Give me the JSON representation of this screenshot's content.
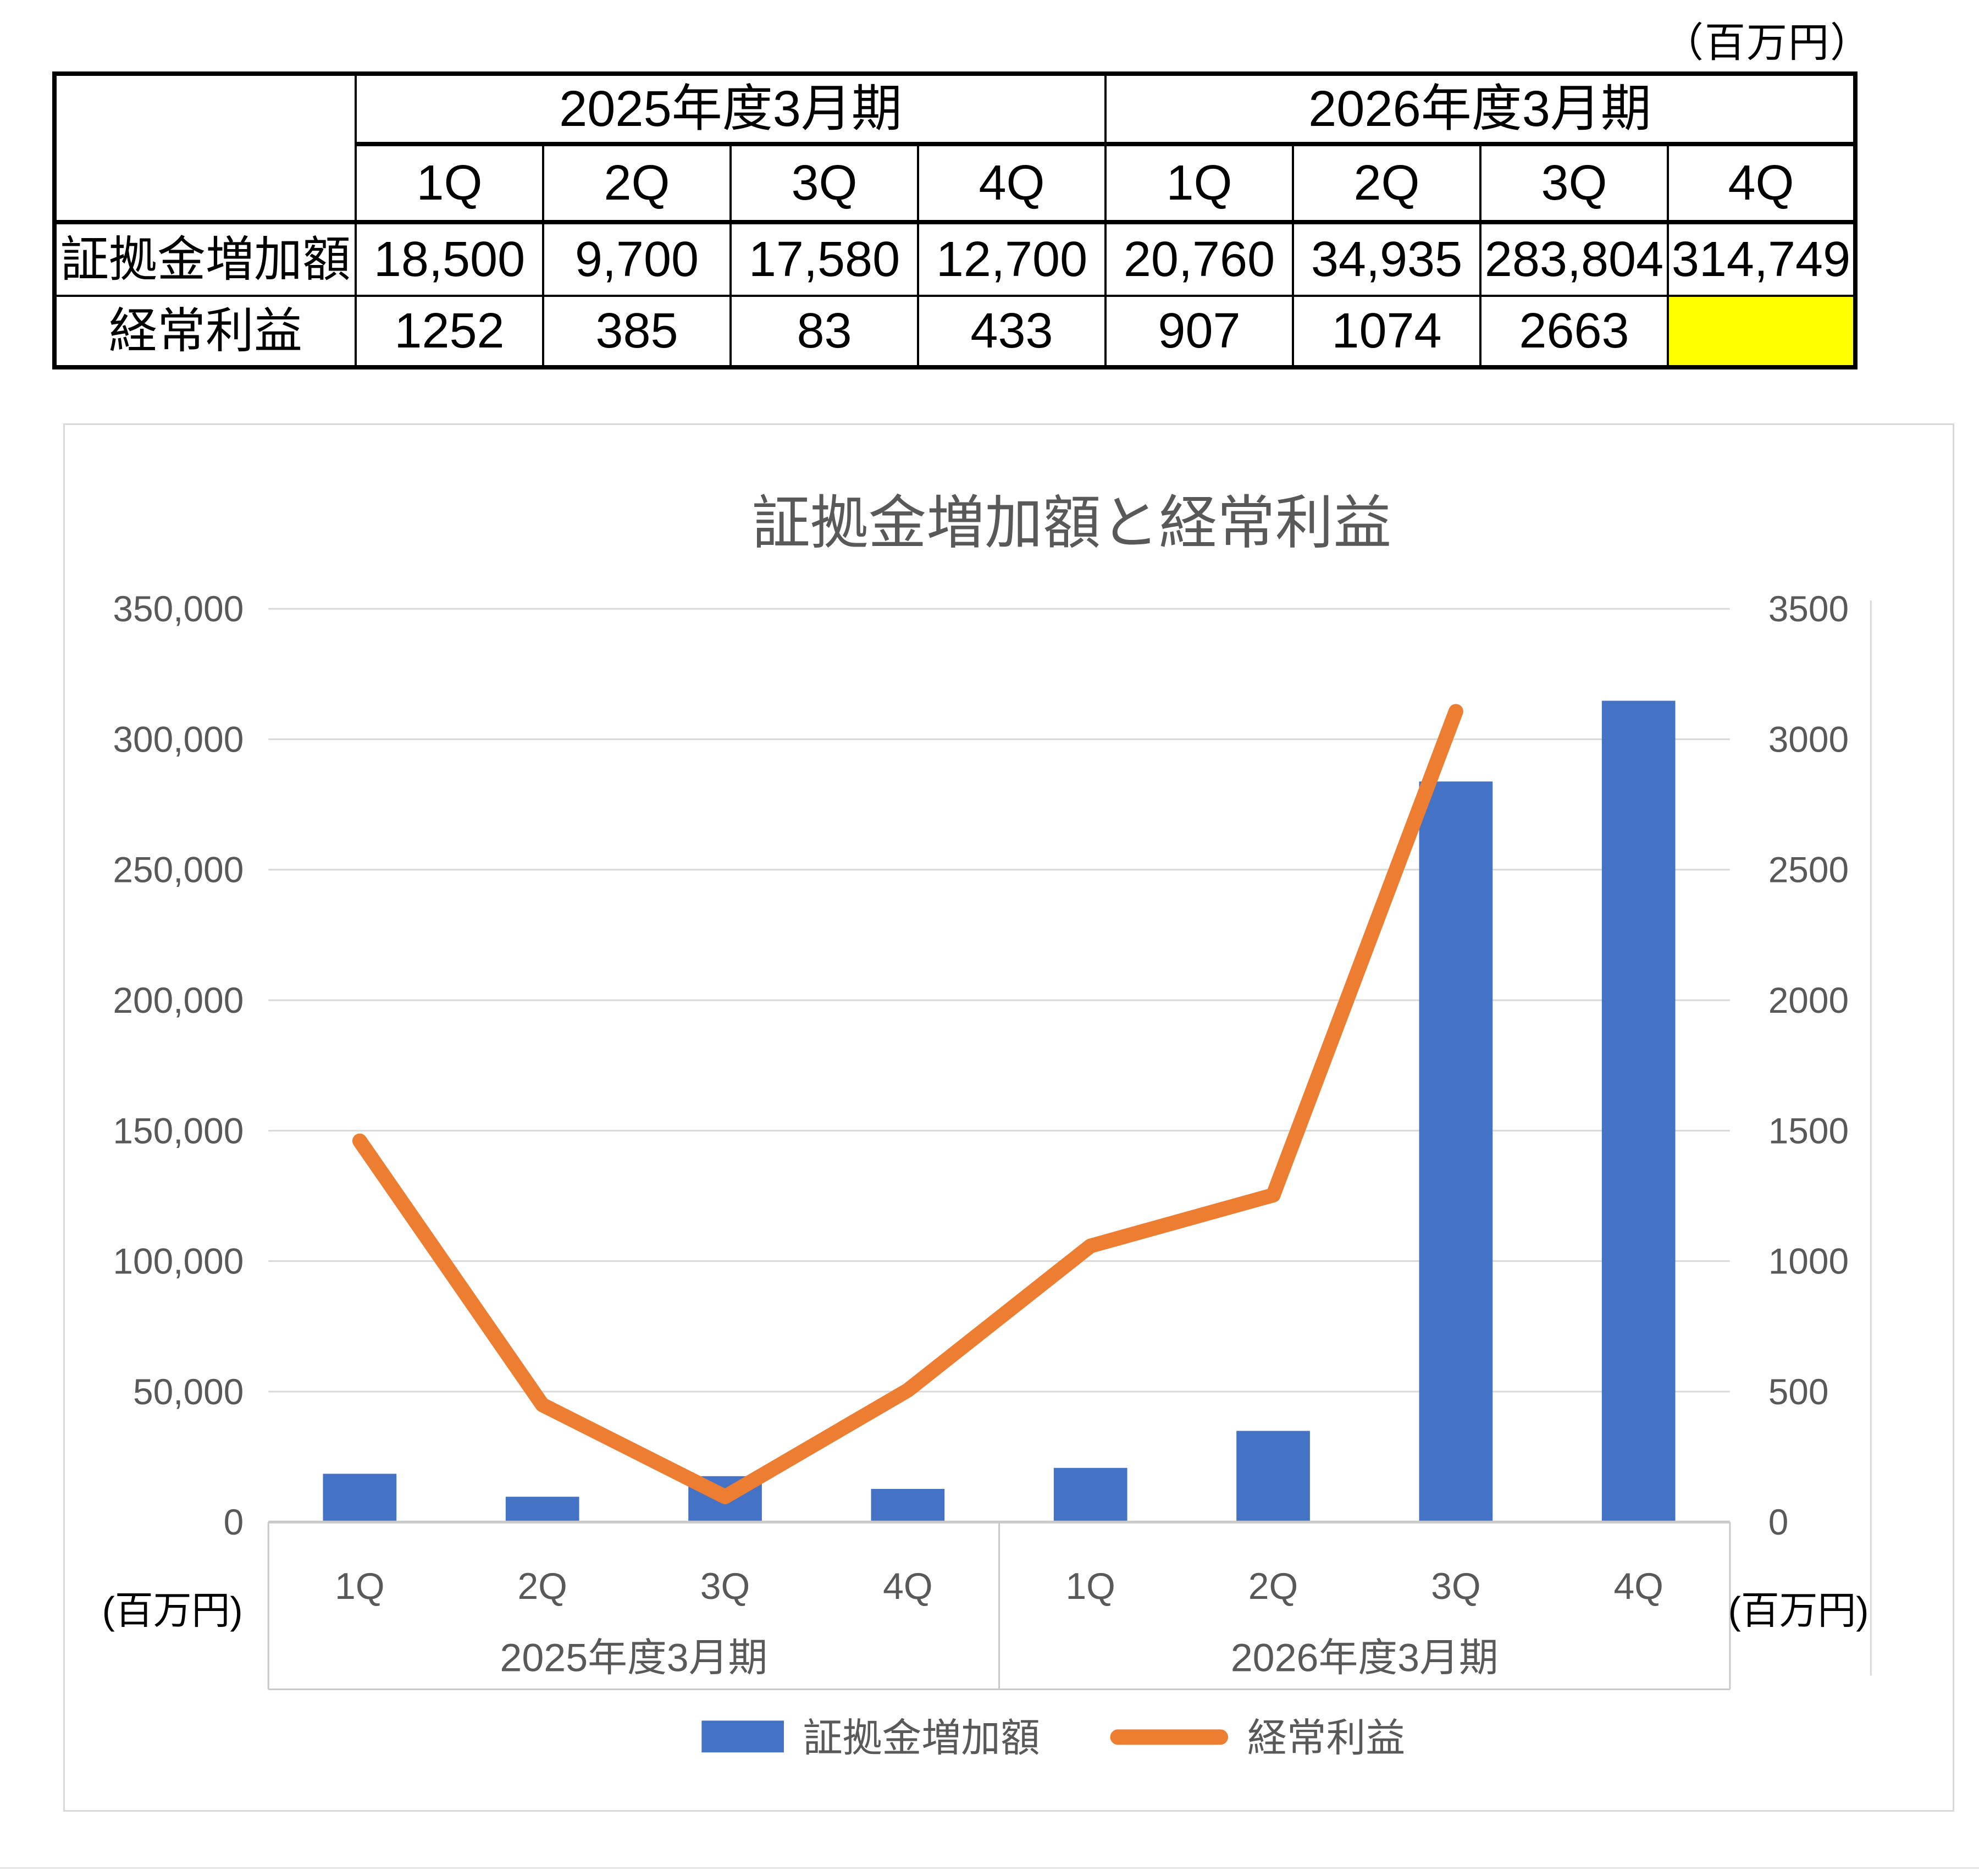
{
  "unit_note_top": "（百万円）",
  "table": {
    "year_headers": [
      "2025年度3月期",
      "2026年度3月期"
    ],
    "quarter_headers": [
      "1Q",
      "2Q",
      "3Q",
      "4Q",
      "1Q",
      "2Q",
      "3Q",
      "4Q"
    ],
    "rows": [
      {
        "label": "証拠金増加額",
        "values": [
          "18,500",
          "9,700",
          "17,580",
          "12,700",
          "20,760",
          "34,935",
          "283,804",
          "314,749"
        ]
      },
      {
        "label": "経常利益",
        "values": [
          "1252",
          "385",
          "83",
          "433",
          "907",
          "1074",
          "2663",
          ""
        ]
      }
    ],
    "highlight_color": "#FFFF00",
    "highlight_cell": {
      "row": 1,
      "col": 7
    }
  },
  "chart_data": {
    "type": "combo",
    "title": "証拠金増加額と経常利益",
    "categories": [
      "1Q",
      "2Q",
      "3Q",
      "4Q",
      "1Q",
      "2Q",
      "3Q",
      "4Q"
    ],
    "group_labels": [
      "2025年度3月期",
      "2026年度3月期"
    ],
    "series": [
      {
        "name": "証拠金増加額",
        "type": "bar",
        "axis": "left",
        "color": "#4472C4",
        "values": [
          18500,
          9700,
          17580,
          12700,
          20760,
          34935,
          283804,
          314749
        ]
      },
      {
        "name": "経常利益",
        "type": "line",
        "axis": "right",
        "color": "#ED7D31",
        "values": [
          1252,
          385,
          83,
          433,
          907,
          1074,
          2663,
          null
        ]
      }
    ],
    "left_axis": {
      "min": 0,
      "max": 350000,
      "step": 50000,
      "unit": "(百万円)"
    },
    "right_axis": {
      "min": 0,
      "max": 3000,
      "step": 500,
      "unit": "(百万円)"
    },
    "grid": true,
    "legend_position": "bottom",
    "colors": {
      "grid": "#D9D9D9",
      "axis_box": "#C9C9C9",
      "tick_label": "#595959",
      "title": "#595959",
      "legend_label": "#595959",
      "unit_label": "#000000"
    }
  }
}
